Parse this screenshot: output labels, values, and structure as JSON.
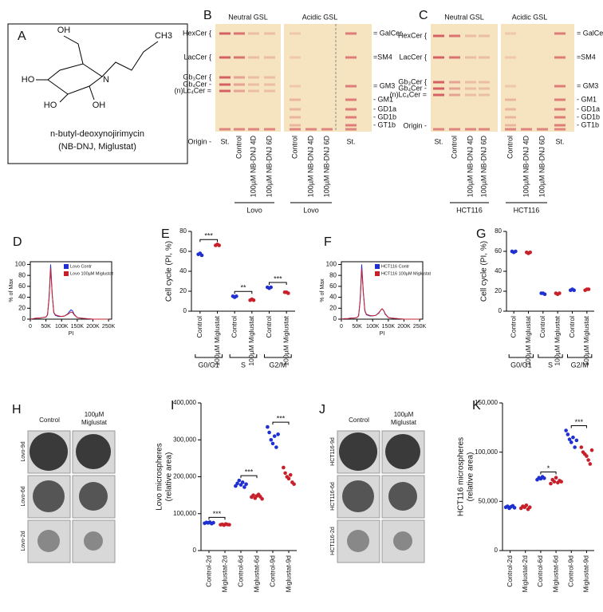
{
  "structure": {
    "label": "A",
    "atoms": [
      "OH",
      "CH3",
      "HO",
      "N",
      "HO",
      "OH"
    ],
    "name": "n-butyl-deoxynojirimycin",
    "alias": "(NB-DNJ, Miglustat)"
  },
  "tlc": [
    {
      "label": "B",
      "sections": [
        "Neutral GSL",
        "Acidic GSL"
      ],
      "left_labels": [
        "HexCer {",
        "LacCer {",
        "Gb₃Cer {",
        "Gb₄Cer -",
        "(n)Lc₄Cer ="
      ],
      "origin": "Origin -",
      "right_labels": [
        "= GalCer",
        "=SM4",
        "= GM3",
        "- GM1",
        "- GD1a",
        "- GD1b",
        "- GT1b"
      ],
      "neutral_lanes": [
        "St.",
        "Control",
        "100µM NB-DNJ 4D",
        "100µM NB-DNJ 6D"
      ],
      "acidic_lanes": [
        "Control",
        "100µM NB-DNJ 4D",
        "100µM NB-DNJ 6D",
        "St."
      ],
      "groups": [
        "Lovo",
        "Lovo"
      ]
    },
    {
      "label": "C",
      "sections": [
        "Neutral GSL",
        "Acidic GSL"
      ],
      "left_labels": [
        "HexCer {",
        "LacCer {",
        "Gb₃Cer {",
        "Gb₄Cer -",
        "(n)Lc₄Cer ="
      ],
      "origin": "Origin -",
      "right_labels": [
        "= GalCer",
        "=SM4",
        "= GM3",
        "- GM1",
        "- GD1a",
        "- GD1b",
        "- GT1b"
      ],
      "neutral_lanes": [
        "St.",
        "Control",
        "100µM NB-DNJ 4D",
        "100µM NB-DNJ 6D"
      ],
      "acidic_lanes": [
        "Control",
        "100µM NB-DNJ 4D",
        "100µM NB-DNJ 6D",
        "St."
      ],
      "groups": [
        "HCT116",
        "HCT116"
      ]
    }
  ],
  "spheres": [
    {
      "label": "H",
      "columns": [
        "Control",
        "100µM Miglustat"
      ],
      "rows": [
        "Lovo-9d",
        "Lovo-6d",
        "Lovo-2d"
      ]
    },
    {
      "label": "J",
      "columns": [
        "Control",
        "100µM Miglustat"
      ],
      "rows": [
        "HCT116-9d",
        "HCT116-6d",
        "HCT116-2d"
      ]
    }
  ],
  "chart_data": [
    {
      "type": "line",
      "label": "D",
      "xlabel": "PI",
      "ylabel": "% of Max",
      "x": [
        0,
        10000,
        20000,
        30000,
        40000,
        50000,
        55000,
        60000,
        65000,
        70000,
        75000,
        80000,
        90000,
        100000,
        110000,
        120000,
        125000,
        130000,
        135000,
        140000,
        150000,
        160000,
        180000,
        200000,
        250000
      ],
      "series": [
        {
          "name": "Lovo Contr",
          "color": "#1f2fd0",
          "values": [
            0,
            1,
            2,
            2,
            3,
            4,
            8,
            40,
            100,
            45,
            12,
            7,
            5,
            5,
            6,
            10,
            14,
            17,
            15,
            9,
            3,
            2,
            1,
            0,
            0
          ]
        },
        {
          "name": "Lovo 100µM Miglustat",
          "color": "#c8202a",
          "values": [
            0,
            1,
            2,
            2,
            3,
            4,
            8,
            38,
            93,
            45,
            13,
            8,
            6,
            5,
            6,
            9,
            11,
            13,
            12,
            8,
            3,
            2,
            1,
            0,
            0
          ]
        }
      ],
      "xlim": [
        0,
        260000
      ],
      "xticks": [
        0,
        {
          "value": 50000,
          "label": "50K"
        },
        {
          "value": 100000,
          "label": "100K"
        },
        {
          "value": 150000,
          "label": "150K"
        },
        {
          "value": 200000,
          "label": "200K"
        },
        {
          "value": 250000,
          "label": "250K"
        }
      ],
      "ylim": [
        0,
        105
      ],
      "yticks": [
        0,
        20,
        40,
        60,
        80,
        100
      ]
    },
    {
      "type": "dot",
      "label": "E",
      "ylabel": [
        "Cell cycle (PI, %)"
      ],
      "categories": [
        "Control",
        "100µM Miglustat",
        "Control",
        "100µM Miglustat",
        "Control",
        "100µM Miglustat"
      ],
      "colors": [
        "#1f2fd0",
        "#c8202a",
        "#1f2fd0",
        "#c8202a",
        "#1f2fd0",
        "#c8202a"
      ],
      "values": [
        [
          57,
          58,
          56
        ],
        [
          66,
          67,
          66
        ],
        [
          15,
          14,
          15
        ],
        [
          11,
          12,
          11
        ],
        [
          24,
          23,
          24
        ],
        [
          19,
          19,
          18
        ]
      ],
      "groups": [
        "G0/G1",
        "S",
        "G2/M"
      ],
      "significance": [
        "***",
        "**",
        "***"
      ],
      "ylim": [
        0,
        80
      ],
      "yticks": [
        0,
        20,
        40,
        60,
        80
      ]
    },
    {
      "type": "line",
      "label": "F",
      "xlabel": "PI",
      "ylabel": "% of Max",
      "x": [
        0,
        10000,
        20000,
        30000,
        40000,
        50000,
        55000,
        60000,
        65000,
        70000,
        75000,
        80000,
        90000,
        100000,
        110000,
        120000,
        125000,
        130000,
        135000,
        140000,
        150000,
        160000,
        180000,
        200000,
        250000
      ],
      "series": [
        {
          "name": "HCT116 Contr",
          "color": "#1f2fd0",
          "values": [
            0,
            1,
            1,
            2,
            2,
            3,
            6,
            35,
            100,
            50,
            15,
            8,
            6,
            6,
            7,
            12,
            16,
            19,
            16,
            9,
            3,
            2,
            1,
            0,
            0
          ]
        },
        {
          "name": "HCT116 100µM Miglustat",
          "color": "#c8202a",
          "values": [
            0,
            1,
            1,
            2,
            2,
            3,
            6,
            33,
            92,
            50,
            16,
            9,
            7,
            6,
            7,
            11,
            16,
            19,
            16,
            10,
            3,
            2,
            1,
            0,
            0
          ]
        }
      ],
      "xlim": [
        0,
        260000
      ],
      "xticks": [
        0,
        {
          "value": 50000,
          "label": "50K"
        },
        {
          "value": 100000,
          "label": "100K"
        },
        {
          "value": 150000,
          "label": "150K"
        },
        {
          "value": 200000,
          "label": "200K"
        },
        {
          "value": 250000,
          "label": "250K"
        }
      ],
      "ylim": [
        0,
        105
      ],
      "yticks": [
        0,
        20,
        40,
        60,
        80,
        100
      ]
    },
    {
      "type": "dot",
      "label": "G",
      "ylabel": [
        "Cell cycle (PI, %)"
      ],
      "categories": [
        "Control",
        "100µM Miglustat",
        "Control",
        "100µM Miglustat",
        "Control",
        "100µM Miglustat"
      ],
      "colors": [
        "#1f2fd0",
        "#c8202a",
        "#1f2fd0",
        "#c8202a",
        "#1f2fd0",
        "#c8202a"
      ],
      "values": [
        [
          60,
          59,
          60
        ],
        [
          59,
          58,
          59
        ],
        [
          18,
          18,
          17
        ],
        [
          18,
          17,
          18
        ],
        [
          21,
          22,
          21
        ],
        [
          21,
          22,
          22
        ]
      ],
      "groups": [
        "G0/G1",
        "S",
        "G2/M"
      ],
      "significance": [
        null,
        null,
        null
      ],
      "ylim": [
        0,
        80
      ],
      "yticks": [
        0,
        20,
        40,
        60,
        80
      ]
    },
    {
      "type": "dot",
      "label": "I",
      "ylabel": [
        "Lovo microspheres",
        "(relative area)"
      ],
      "categories": [
        "Control-2d",
        "Miglustat-2d",
        "Control-6d",
        "Miglustat-6d",
        "Control-9d",
        "Miglustat-9d"
      ],
      "colors": [
        "#1f2fd0",
        "#c8202a",
        "#1f2fd0",
        "#c8202a",
        "#1f2fd0",
        "#c8202a"
      ],
      "values": [
        [
          74000,
          76000,
          75000,
          77000,
          73000,
          75500
        ],
        [
          70000,
          71000,
          69000,
          72000,
          70500,
          70000
        ],
        [
          175000,
          182000,
          190000,
          178000,
          185000,
          172000,
          180000
        ],
        [
          145000,
          150000,
          142000,
          148000,
          152000,
          146000,
          140000
        ],
        [
          335000,
          320000,
          300000,
          290000,
          310000,
          280000,
          315000
        ],
        [
          225000,
          210000,
          200000,
          195000,
          205000,
          185000,
          180000
        ]
      ],
      "significance": [
        "***",
        "***",
        "***"
      ],
      "ylim": [
        0,
        400000
      ],
      "yticks": [
        0,
        {
          "value": 100000,
          "label": "100,000"
        },
        {
          "value": 200000,
          "label": "200,000"
        },
        {
          "value": 300000,
          "label": "300,000"
        },
        {
          "value": 400000,
          "label": "400,000"
        }
      ]
    },
    {
      "type": "dot",
      "label": "K",
      "ylabel": [
        "HCT116 microspheres",
        "(relative area)"
      ],
      "categories": [
        "Control-2d",
        "Miglustat-2d",
        "Control-6d",
        "Miglustat-6d",
        "Control-9d",
        "Miglustat-9d"
      ],
      "colors": [
        "#1f2fd0",
        "#c8202a",
        "#1f2fd0",
        "#c8202a",
        "#1f2fd0",
        "#c8202a"
      ],
      "values": [
        [
          44000,
          45000,
          43000,
          44500,
          45500,
          43500
        ],
        [
          43000,
          45000,
          44000,
          46000,
          42000,
          44000
        ],
        [
          72000,
          74000,
          73000,
          75000,
          73500
        ],
        [
          68000,
          72000,
          70000,
          74000,
          69000,
          71000,
          70000
        ],
        [
          122000,
          118000,
          113000,
          110000,
          115000,
          105000,
          112000
        ],
        [
          105000,
          100000,
          98000,
          96000,
          92000,
          88000,
          102000
        ]
      ],
      "significance": [
        null,
        "*",
        "***"
      ],
      "ylim": [
        0,
        150000
      ],
      "yticks": [
        0,
        {
          "value": 50000,
          "label": "50,000"
        },
        {
          "value": 100000,
          "label": "100,000"
        },
        {
          "value": 150000,
          "label": "150,000"
        }
      ]
    }
  ]
}
